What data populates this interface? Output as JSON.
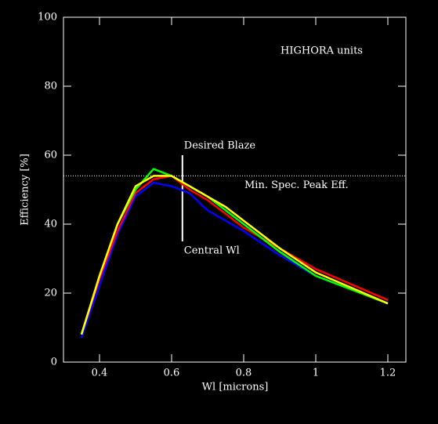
{
  "chart_data": {
    "type": "line",
    "x_label": "Wl [microns]",
    "y_label": "Efficiency [%]",
    "xlim": [
      0.3,
      1.25
    ],
    "ylim": [
      0,
      100
    ],
    "xticks": [
      0.4,
      0.6,
      0.8,
      1,
      1.2
    ],
    "yticks": [
      0,
      20,
      40,
      60,
      80,
      100
    ],
    "x": [
      0.35,
      0.4,
      0.45,
      0.5,
      0.55,
      0.6,
      0.65,
      0.7,
      0.75,
      0.8,
      0.9,
      1,
      1.1,
      1.2
    ],
    "series": [
      {
        "color": "#0000ff",
        "values": [
          7,
          22,
          37,
          48,
          52,
          51,
          49,
          44,
          41,
          38,
          31,
          25,
          21,
          17
        ]
      },
      {
        "color": "#ff0000",
        "values": [
          8,
          24,
          38,
          49,
          53,
          54,
          50,
          47,
          43,
          39,
          33,
          27,
          22.5,
          18
        ]
      },
      {
        "color": "#00ff00",
        "values": [
          8,
          25,
          40,
          50,
          56,
          54,
          51,
          48,
          44,
          40,
          32,
          25,
          21,
          17
        ]
      },
      {
        "color": "#ffff00",
        "values": [
          8,
          25,
          40,
          51,
          54,
          54,
          51,
          48,
          45,
          41,
          33,
          26,
          21.5,
          17
        ]
      }
    ],
    "reference_line": {
      "y": 54,
      "label": "Min. Spec. Peak Eff."
    },
    "blaze_marker": {
      "x": 0.63,
      "y": [
        35,
        60
      ],
      "top_label": "Desired Blaze",
      "bottom_label": "Central Wl"
    },
    "annotation": "HIGHORA units"
  }
}
